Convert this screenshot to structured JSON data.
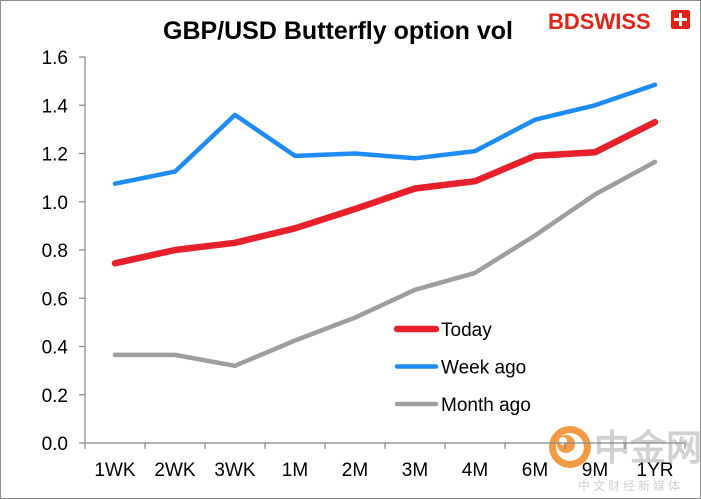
{
  "logo": {
    "text": "BDSWISS",
    "color": "#e2231a"
  },
  "watermark": {
    "name": "中金网",
    "tagline": "中文财经新媒体",
    "swirl_color": "#f08a24"
  },
  "chart_data": {
    "type": "line",
    "title": "GBP/USD Butterfly option vol",
    "xlabel": "",
    "ylabel": "",
    "categories": [
      "1WK",
      "2WK",
      "3WK",
      "1M",
      "2M",
      "3M",
      "4M",
      "6M",
      "9M",
      "1YR"
    ],
    "ylim": [
      0,
      1.6
    ],
    "yticks": [
      "0.0",
      "0.2",
      "0.4",
      "0.6",
      "0.8",
      "1.0",
      "1.2",
      "1.4",
      "1.6"
    ],
    "grid": false,
    "legend": "center-right",
    "series": [
      {
        "name": "Today",
        "color": "#e8202a",
        "values": [
          0.745,
          0.8,
          0.83,
          0.89,
          0.97,
          1.055,
          1.085,
          1.19,
          1.205,
          1.33
        ]
      },
      {
        "name": "Week ago",
        "color": "#1e8cf5",
        "values": [
          1.075,
          1.125,
          1.36,
          1.19,
          1.2,
          1.18,
          1.21,
          1.34,
          1.4,
          1.485
        ]
      },
      {
        "name": "Month ago",
        "color": "#9e9e9e",
        "values": [
          0.365,
          0.365,
          0.32,
          0.425,
          0.52,
          0.635,
          0.705,
          0.86,
          1.03,
          1.165
        ]
      }
    ]
  }
}
